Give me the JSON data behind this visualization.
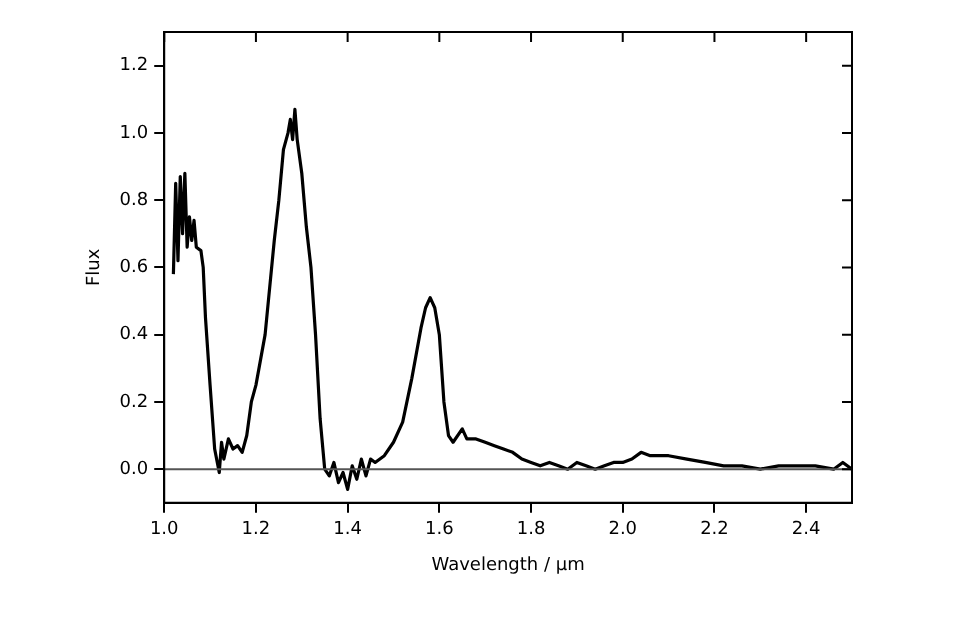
{
  "chart_data": {
    "type": "line",
    "xlabel": "Wavelength / µm",
    "ylabel": "Flux",
    "xlim": [
      1.0,
      2.5
    ],
    "xticks": [
      {
        "value": 1.0,
        "label": "1.0"
      },
      1.2,
      1.4,
      1.6,
      1.8,
      {
        "value": 2.0,
        "label": "2.0"
      },
      2.2,
      2.4
    ],
    "ylim": [
      -0.1,
      1.3
    ],
    "yticks": [
      {
        "value": 0,
        "label": "0.0"
      },
      0.2,
      0.4,
      0.6,
      0.8,
      {
        "value": 1,
        "label": "1.0"
      },
      1.2
    ],
    "grid": false,
    "legend": false,
    "marker": "none",
    "line_style": "solid",
    "ref_lines": [
      {
        "axis": "y",
        "value": 0,
        "color": "#555555"
      }
    ],
    "series": [
      {
        "color": "#000000",
        "x": [
          1.02,
          1.025,
          1.03,
          1.035,
          1.04,
          1.045,
          1.05,
          1.055,
          1.06,
          1.065,
          1.07,
          1.08,
          1.085,
          1.09,
          1.1,
          1.11,
          1.12,
          1.125,
          1.13,
          1.14,
          1.15,
          1.16,
          1.17,
          1.18,
          1.19,
          1.2,
          1.22,
          1.24,
          1.25,
          1.26,
          1.27,
          1.275,
          1.28,
          1.285,
          1.29,
          1.3,
          1.31,
          1.32,
          1.33,
          1.34,
          1.35,
          1.36,
          1.37,
          1.38,
          1.39,
          1.4,
          1.41,
          1.42,
          1.43,
          1.44,
          1.45,
          1.46,
          1.48,
          1.5,
          1.52,
          1.54,
          1.56,
          1.57,
          1.58,
          1.59,
          1.6,
          1.61,
          1.62,
          1.63,
          1.65,
          1.66,
          1.68,
          1.7,
          1.72,
          1.74,
          1.76,
          1.78,
          1.8,
          1.82,
          1.84,
          1.86,
          1.88,
          1.9,
          1.92,
          1.94,
          1.96,
          1.98,
          2.0,
          2.02,
          2.04,
          2.06,
          2.1,
          2.14,
          2.18,
          2.22,
          2.26,
          2.3,
          2.34,
          2.38,
          2.42,
          2.46,
          2.48,
          2.5
        ],
        "values": [
          0.58,
          0.85,
          0.62,
          0.87,
          0.7,
          0.88,
          0.66,
          0.75,
          0.68,
          0.74,
          0.66,
          0.65,
          0.6,
          0.45,
          0.25,
          0.06,
          -0.01,
          0.08,
          0.03,
          0.09,
          0.06,
          0.07,
          0.05,
          0.1,
          0.2,
          0.25,
          0.4,
          0.68,
          0.8,
          0.95,
          1.0,
          1.04,
          0.98,
          1.07,
          0.98,
          0.88,
          0.72,
          0.6,
          0.4,
          0.15,
          0.0,
          -0.02,
          0.02,
          -0.04,
          -0.01,
          -0.06,
          0.01,
          -0.03,
          0.03,
          -0.02,
          0.03,
          0.02,
          0.04,
          0.08,
          0.14,
          0.27,
          0.42,
          0.48,
          0.51,
          0.48,
          0.4,
          0.2,
          0.1,
          0.08,
          0.12,
          0.09,
          0.09,
          0.08,
          0.07,
          0.06,
          0.05,
          0.03,
          0.02,
          0.01,
          0.02,
          0.01,
          0.0,
          0.02,
          0.01,
          0.0,
          0.01,
          0.02,
          0.02,
          0.03,
          0.05,
          0.04,
          0.04,
          0.03,
          0.02,
          0.01,
          0.01,
          0.0,
          0.01,
          0.01,
          0.01,
          0.0,
          0.02,
          0.0
        ]
      }
    ]
  }
}
